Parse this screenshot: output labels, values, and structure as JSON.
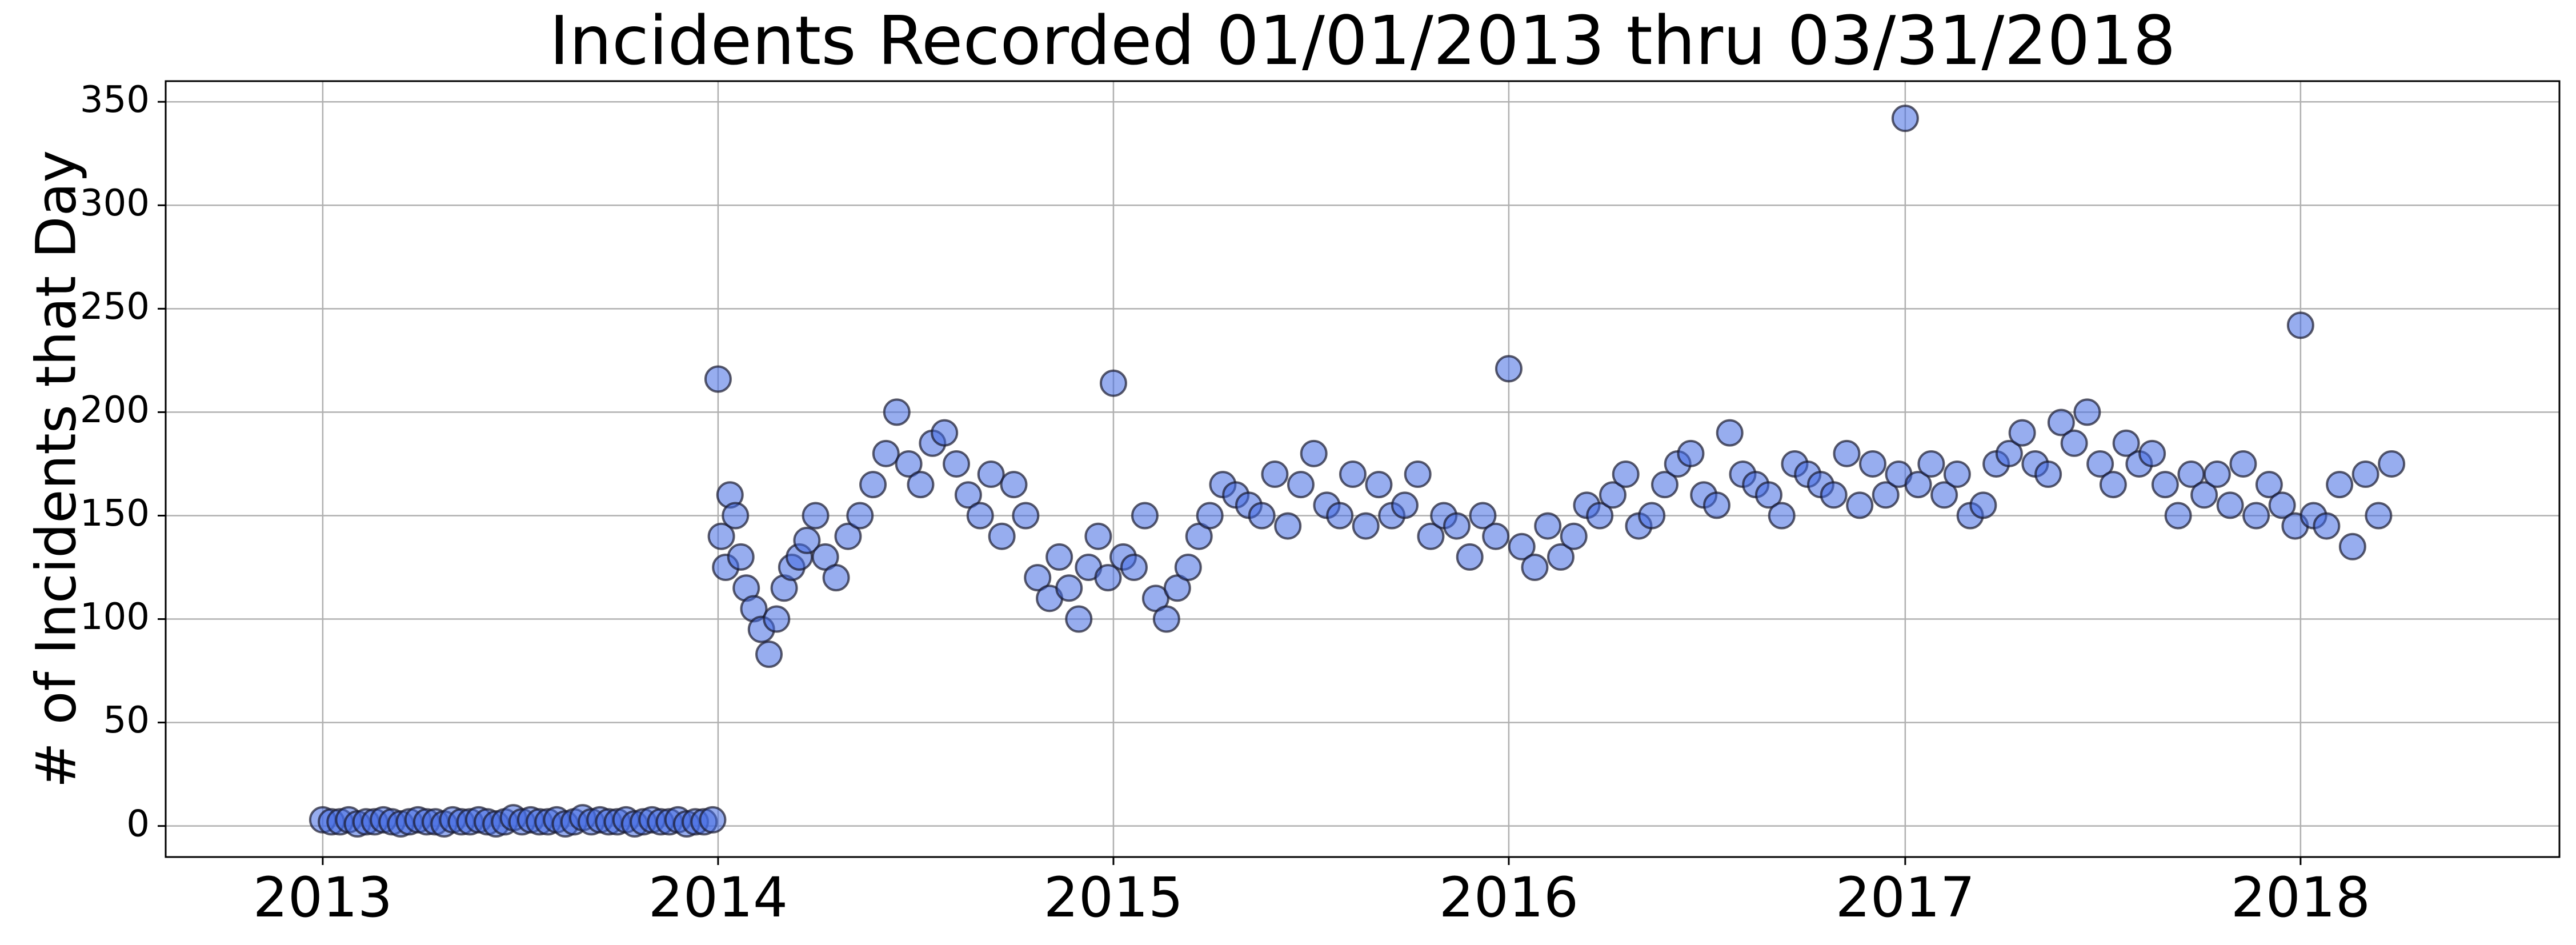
{
  "chart_data": {
    "type": "scatter",
    "title": "Incidents Recorded  01/01/2013 thru 03/31/2018",
    "xlabel": "",
    "ylabel": "# of Incidents that Day",
    "x_axis": "date",
    "xlim": [
      "2012-08-09",
      "2018-08-28"
    ],
    "ylim": [
      -15,
      360
    ],
    "x_ticks": [
      "2013",
      "2014",
      "2015",
      "2016",
      "2017",
      "2018"
    ],
    "y_ticks": [
      0,
      50,
      100,
      150,
      200,
      250,
      300,
      350
    ],
    "grid": true,
    "legend": "none",
    "marker_color": "#4169e1",
    "series": [
      {
        "x": [
          "2013-01-01",
          "2013-01-09",
          "2013-01-17",
          "2013-01-25",
          "2013-02-02",
          "2013-02-10",
          "2013-02-18",
          "2013-02-26",
          "2013-03-06",
          "2013-03-14",
          "2013-03-22",
          "2013-03-30",
          "2013-04-07",
          "2013-04-15",
          "2013-04-23",
          "2013-05-01",
          "2013-05-09",
          "2013-05-17",
          "2013-05-25",
          "2013-06-02",
          "2013-06-10",
          "2013-06-18",
          "2013-06-26",
          "2013-07-04",
          "2013-07-12",
          "2013-07-20",
          "2013-07-28",
          "2013-08-05",
          "2013-08-13",
          "2013-08-21",
          "2013-08-29",
          "2013-09-06",
          "2013-09-14",
          "2013-09-22",
          "2013-09-30",
          "2013-10-08",
          "2013-10-16",
          "2013-10-24",
          "2013-11-01",
          "2013-11-09",
          "2013-11-17",
          "2013-11-25",
          "2013-12-03",
          "2013-12-11",
          "2013-12-19",
          "2013-12-27",
          "2014-01-01",
          "2014-01-04",
          "2014-01-08",
          "2014-01-12",
          "2014-01-17",
          "2014-01-22",
          "2014-01-27",
          "2014-02-03",
          "2014-02-10",
          "2014-02-17",
          "2014-02-24",
          "2014-03-03",
          "2014-03-10",
          "2014-03-17",
          "2014-03-24",
          "2014-04-01",
          "2014-04-10",
          "2014-04-20",
          "2014-05-01",
          "2014-05-12",
          "2014-05-24",
          "2014-06-05",
          "2014-06-15",
          "2014-06-26",
          "2014-07-07",
          "2014-07-18",
          "2014-07-29",
          "2014-08-09",
          "2014-08-20",
          "2014-08-31",
          "2014-09-10",
          "2014-09-20",
          "2014-10-01",
          "2014-10-12",
          "2014-10-23",
          "2014-11-03",
          "2014-11-12",
          "2014-11-21",
          "2014-11-30",
          "2014-12-09",
          "2014-12-18",
          "2014-12-27",
          "2015-01-01",
          "2015-01-10",
          "2015-01-20",
          "2015-01-30",
          "2015-02-09",
          "2015-02-19",
          "2015-03-01",
          "2015-03-11",
          "2015-03-21",
          "2015-03-31",
          "2015-04-12",
          "2015-04-24",
          "2015-05-06",
          "2015-05-18",
          "2015-05-30",
          "2015-06-11",
          "2015-06-23",
          "2015-07-05",
          "2015-07-17",
          "2015-07-29",
          "2015-08-10",
          "2015-08-22",
          "2015-09-03",
          "2015-09-15",
          "2015-09-27",
          "2015-10-09",
          "2015-10-21",
          "2015-11-02",
          "2015-11-14",
          "2015-11-26",
          "2015-12-08",
          "2015-12-20",
          "2016-01-01",
          "2016-01-13",
          "2016-01-25",
          "2016-02-06",
          "2016-02-18",
          "2016-03-01",
          "2016-03-13",
          "2016-03-25",
          "2016-04-06",
          "2016-04-18",
          "2016-04-30",
          "2016-05-12",
          "2016-05-24",
          "2016-06-05",
          "2016-06-17",
          "2016-06-29",
          "2016-07-11",
          "2016-07-23",
          "2016-08-04",
          "2016-08-16",
          "2016-08-28",
          "2016-09-09",
          "2016-09-21",
          "2016-10-03",
          "2016-10-15",
          "2016-10-27",
          "2016-11-08",
          "2016-11-20",
          "2016-12-02",
          "2016-12-14",
          "2016-12-26",
          "2017-01-01",
          "2017-01-13",
          "2017-01-25",
          "2017-02-06",
          "2017-02-18",
          "2017-03-02",
          "2017-03-14",
          "2017-03-26",
          "2017-04-07",
          "2017-04-19",
          "2017-05-01",
          "2017-05-13",
          "2017-05-25",
          "2017-06-06",
          "2017-06-18",
          "2017-06-30",
          "2017-07-12",
          "2017-07-24",
          "2017-08-05",
          "2017-08-17",
          "2017-08-29",
          "2017-09-10",
          "2017-09-22",
          "2017-10-04",
          "2017-10-16",
          "2017-10-28",
          "2017-11-09",
          "2017-11-21",
          "2017-12-03",
          "2017-12-15",
          "2017-12-27",
          "2018-01-01",
          "2018-01-13",
          "2018-01-25",
          "2018-02-06",
          "2018-02-18",
          "2018-03-02",
          "2018-03-14",
          "2018-03-26"
        ],
        "y": [
          3,
          2,
          2,
          3,
          1,
          2,
          2,
          3,
          2,
          1,
          2,
          3,
          2,
          2,
          1,
          3,
          2,
          2,
          3,
          2,
          1,
          2,
          4,
          2,
          3,
          2,
          2,
          3,
          1,
          2,
          4,
          2,
          3,
          2,
          2,
          3,
          1,
          2,
          3,
          2,
          2,
          3,
          1,
          2,
          2,
          3,
          216,
          140,
          125,
          160,
          150,
          130,
          115,
          105,
          95,
          83,
          100,
          115,
          125,
          130,
          138,
          150,
          130,
          120,
          140,
          150,
          165,
          180,
          200,
          175,
          165,
          185,
          190,
          175,
          160,
          150,
          170,
          140,
          165,
          150,
          120,
          110,
          130,
          115,
          100,
          125,
          140,
          120,
          214,
          130,
          125,
          150,
          110,
          100,
          115,
          125,
          140,
          150,
          165,
          160,
          155,
          150,
          170,
          145,
          165,
          180,
          155,
          150,
          170,
          145,
          165,
          150,
          155,
          170,
          140,
          150,
          145,
          130,
          150,
          140,
          221,
          135,
          125,
          145,
          130,
          140,
          155,
          150,
          160,
          170,
          145,
          150,
          165,
          175,
          180,
          160,
          155,
          190,
          170,
          165,
          160,
          150,
          175,
          170,
          165,
          160,
          180,
          155,
          175,
          160,
          170,
          342,
          165,
          175,
          160,
          170,
          150,
          155,
          175,
          180,
          190,
          175,
          170,
          195,
          185,
          200,
          175,
          165,
          185,
          175,
          180,
          165,
          150,
          170,
          160,
          170,
          155,
          175,
          150,
          165,
          155,
          145,
          242,
          150,
          145,
          165,
          135,
          170,
          150,
          175
        ]
      }
    ]
  }
}
